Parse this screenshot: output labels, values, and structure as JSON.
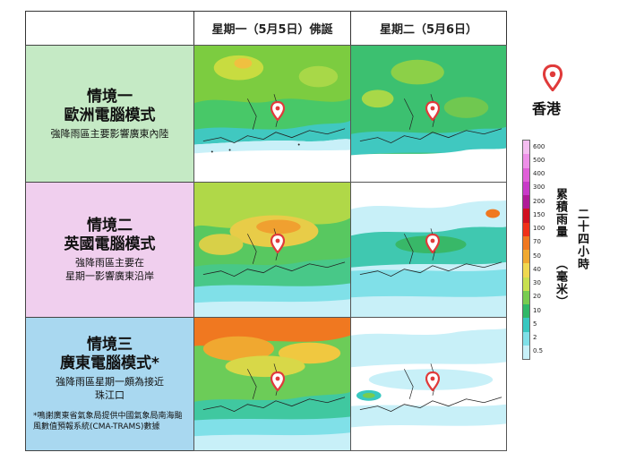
{
  "header": {
    "col1": "星期一（5月5日）佛誕",
    "col2": "星期二（5月6日）"
  },
  "scenarios": [
    {
      "title1": "情境一",
      "title2": "歐洲電腦模式",
      "desc1": "強降雨區主要影響廣東內陸",
      "desc2": "",
      "color": "#c5eac5"
    },
    {
      "title1": "情境二",
      "title2": "英國電腦模式",
      "desc1": "強降雨區主要在",
      "desc2": "星期一影響廣東沿岸",
      "color": "#f0cfee"
    },
    {
      "title1": "情境三",
      "title2": "廣東電腦模式*",
      "desc1": "強降雨區星期一頗為接近",
      "desc2": "珠江口",
      "color": "#a9d8f0"
    }
  ],
  "footnote": "*鳴謝廣東省氣象局提供中國氣象局南海颱風數值預報系統(CMA-TRAMS)數據",
  "legend": {
    "location_label": "香港",
    "pin_icon": "location-pin-icon",
    "unit_col1": "累積雨量",
    "unit_col2": "二十四小時",
    "unit_paren": "（毫米）",
    "scale": [
      {
        "label": "600",
        "color": "#f4bdf0"
      },
      {
        "label": "500",
        "color": "#ee90e8"
      },
      {
        "label": "400",
        "color": "#e060d8"
      },
      {
        "label": "300",
        "color": "#c83ac8"
      },
      {
        "label": "200",
        "color": "#b01a98"
      },
      {
        "label": "150",
        "color": "#d01020"
      },
      {
        "label": "100",
        "color": "#f03018"
      },
      {
        "label": "70",
        "color": "#f07820"
      },
      {
        "label": "50",
        "color": "#f0a830"
      },
      {
        "label": "40",
        "color": "#f0d850"
      },
      {
        "label": "30",
        "color": "#c8e050"
      },
      {
        "label": "20",
        "color": "#78cc50"
      },
      {
        "label": "10",
        "color": "#30b868"
      },
      {
        "label": "5",
        "color": "#38c8c0"
      },
      {
        "label": "2",
        "color": "#80e0e8"
      },
      {
        "label": "0.5",
        "color": "#c8f0f8"
      }
    ]
  }
}
